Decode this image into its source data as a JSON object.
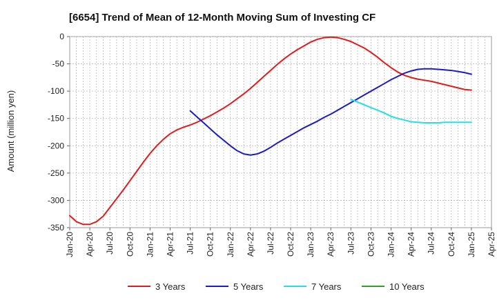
{
  "chart_data": {
    "type": "line",
    "title": "[6654]  Trend of Mean of 12-Month Moving Sum of Investing CF",
    "xlabel": "",
    "ylabel": "Amount (million yen)",
    "ylim": [
      -350,
      0
    ],
    "yticks": [
      0,
      -50,
      -100,
      -150,
      -200,
      -250,
      -300,
      -350
    ],
    "x_ticks": [
      "Jan-20",
      "Apr-20",
      "Jul-20",
      "Oct-20",
      "Jan-21",
      "Apr-21",
      "Jul-21",
      "Oct-21",
      "Jan-22",
      "Apr-22",
      "Jul-22",
      "Oct-22",
      "Jan-23",
      "Apr-23",
      "Jul-23",
      "Oct-23",
      "Jan-24",
      "Apr-24",
      "Jul-24",
      "Oct-24",
      "Jan-25",
      "Apr-25"
    ],
    "grid": true,
    "legend_position": "bottom",
    "series": [
      {
        "name": "3 Years",
        "color": "#e31a1c",
        "points": [
          [
            "2020-01",
            -328
          ],
          [
            "2020-02",
            -339
          ],
          [
            "2020-03",
            -344
          ],
          [
            "2020-04",
            -344
          ],
          [
            "2020-05",
            -339
          ],
          [
            "2020-06",
            -329
          ],
          [
            "2020-07",
            -313
          ],
          [
            "2020-08",
            -297
          ],
          [
            "2020-09",
            -281
          ],
          [
            "2020-10",
            -264
          ],
          [
            "2020-11",
            -247
          ],
          [
            "2020-12",
            -230
          ],
          [
            "2021-01",
            -214
          ],
          [
            "2021-02",
            -200
          ],
          [
            "2021-03",
            -188
          ],
          [
            "2021-04",
            -178
          ],
          [
            "2021-05",
            -171
          ],
          [
            "2021-06",
            -166
          ],
          [
            "2021-07",
            -162
          ],
          [
            "2021-08",
            -157
          ],
          [
            "2021-09",
            -151
          ],
          [
            "2021-10",
            -145
          ],
          [
            "2021-11",
            -138
          ],
          [
            "2021-12",
            -131
          ],
          [
            "2022-01",
            -123
          ],
          [
            "2022-02",
            -114
          ],
          [
            "2022-03",
            -105
          ],
          [
            "2022-04",
            -95
          ],
          [
            "2022-05",
            -84
          ],
          [
            "2022-06",
            -73
          ],
          [
            "2022-07",
            -62
          ],
          [
            "2022-08",
            -51
          ],
          [
            "2022-09",
            -41
          ],
          [
            "2022-10",
            -32
          ],
          [
            "2022-11",
            -24
          ],
          [
            "2022-12",
            -17
          ],
          [
            "2023-01",
            -10
          ],
          [
            "2023-02",
            -5
          ],
          [
            "2023-03",
            -2
          ],
          [
            "2023-04",
            -1
          ],
          [
            "2023-05",
            -2
          ],
          [
            "2023-06",
            -5
          ],
          [
            "2023-07",
            -9
          ],
          [
            "2023-08",
            -15
          ],
          [
            "2023-09",
            -21
          ],
          [
            "2023-10",
            -29
          ],
          [
            "2023-11",
            -38
          ],
          [
            "2023-12",
            -48
          ],
          [
            "2024-01",
            -57
          ],
          [
            "2024-02",
            -65
          ],
          [
            "2024-03",
            -71
          ],
          [
            "2024-04",
            -75
          ],
          [
            "2024-05",
            -78
          ],
          [
            "2024-06",
            -80
          ],
          [
            "2024-07",
            -82
          ],
          [
            "2024-08",
            -85
          ],
          [
            "2024-09",
            -88
          ],
          [
            "2024-10",
            -91
          ],
          [
            "2024-11",
            -94
          ],
          [
            "2024-12",
            -97
          ],
          [
            "2025-01",
            -98
          ]
        ]
      },
      {
        "name": "5 Years",
        "color": "#1a1acc",
        "points": [
          [
            "2021-07",
            -136
          ],
          [
            "2021-08",
            -147
          ],
          [
            "2021-09",
            -158
          ],
          [
            "2021-10",
            -169
          ],
          [
            "2021-11",
            -180
          ],
          [
            "2021-12",
            -190
          ],
          [
            "2022-01",
            -200
          ],
          [
            "2022-02",
            -209
          ],
          [
            "2022-03",
            -215
          ],
          [
            "2022-04",
            -217
          ],
          [
            "2022-05",
            -215
          ],
          [
            "2022-06",
            -210
          ],
          [
            "2022-07",
            -203
          ],
          [
            "2022-08",
            -195
          ],
          [
            "2022-09",
            -188
          ],
          [
            "2022-10",
            -181
          ],
          [
            "2022-11",
            -174
          ],
          [
            "2022-12",
            -167
          ],
          [
            "2023-01",
            -161
          ],
          [
            "2023-02",
            -155
          ],
          [
            "2023-03",
            -148
          ],
          [
            "2023-04",
            -142
          ],
          [
            "2023-05",
            -135
          ],
          [
            "2023-06",
            -128
          ],
          [
            "2023-07",
            -121
          ],
          [
            "2023-08",
            -114
          ],
          [
            "2023-09",
            -107
          ],
          [
            "2023-10",
            -100
          ],
          [
            "2023-11",
            -93
          ],
          [
            "2023-12",
            -86
          ],
          [
            "2024-01",
            -79
          ],
          [
            "2024-02",
            -73
          ],
          [
            "2024-03",
            -67
          ],
          [
            "2024-04",
            -63
          ],
          [
            "2024-05",
            -60
          ],
          [
            "2024-06",
            -59
          ],
          [
            "2024-07",
            -59
          ],
          [
            "2024-08",
            -60
          ],
          [
            "2024-09",
            -61
          ],
          [
            "2024-10",
            -62
          ],
          [
            "2024-11",
            -64
          ],
          [
            "2024-12",
            -66
          ],
          [
            "2025-01",
            -69
          ]
        ]
      },
      {
        "name": "7 Years",
        "color": "#22e0e8",
        "points": [
          [
            "2023-07",
            -115
          ],
          [
            "2023-08",
            -120
          ],
          [
            "2023-09",
            -125
          ],
          [
            "2023-10",
            -130
          ],
          [
            "2023-11",
            -135
          ],
          [
            "2023-12",
            -140
          ],
          [
            "2024-01",
            -146
          ],
          [
            "2024-02",
            -150
          ],
          [
            "2024-03",
            -153
          ],
          [
            "2024-04",
            -156
          ],
          [
            "2024-05",
            -157
          ],
          [
            "2024-06",
            -158
          ],
          [
            "2024-07",
            -158
          ],
          [
            "2024-08",
            -158
          ],
          [
            "2024-09",
            -157
          ],
          [
            "2024-10",
            -157
          ],
          [
            "2024-11",
            -157
          ],
          [
            "2024-12",
            -157
          ],
          [
            "2025-01",
            -157
          ]
        ]
      },
      {
        "name": "10 Years",
        "color": "#2ca02c",
        "points": []
      }
    ]
  }
}
